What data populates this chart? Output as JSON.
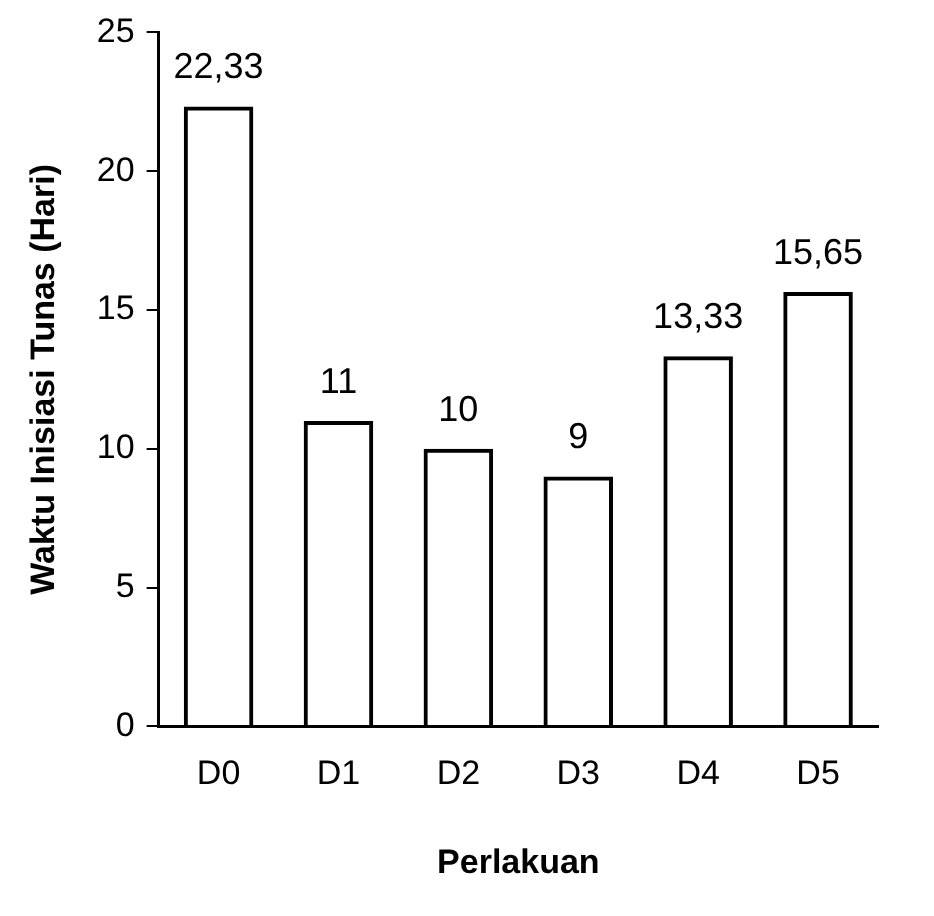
{
  "chart_data": {
    "type": "bar",
    "xlabel": "Perlakuan",
    "ylabel": "Waktu Inisiasi Tunas (Hari)",
    "categories": [
      "D0",
      "D1",
      "D2",
      "D3",
      "D4",
      "D5"
    ],
    "values": [
      22.33,
      11,
      10,
      9,
      13.33,
      15.65
    ],
    "value_labels": [
      "22,33",
      "11",
      "10",
      "9",
      "13,33",
      "15,65"
    ],
    "color": "#000000",
    "ylim": [
      0,
      25
    ],
    "yticks": [
      0,
      5,
      10,
      15,
      20,
      25
    ],
    "grid": false,
    "legend": false
  }
}
